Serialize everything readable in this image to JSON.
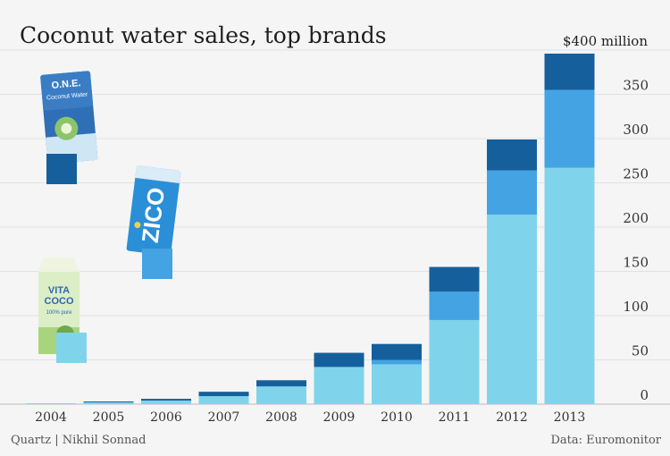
{
  "chart_data": {
    "type": "bar",
    "stacked": true,
    "title": "Coconut water sales, top brands",
    "unit_label": "$400 million",
    "categories": [
      "2004",
      "2005",
      "2006",
      "2007",
      "2008",
      "2009",
      "2010",
      "2011",
      "2012",
      "2013"
    ],
    "series": [
      {
        "brand_image": "Vita Coco",
        "color": "#7fd4ec",
        "values": [
          1,
          2,
          4,
          9,
          20,
          42,
          45,
          95,
          214,
          267
        ]
      },
      {
        "brand_image": "Zico",
        "color": "#44a3e2",
        "values": [
          0,
          0,
          0,
          0,
          0,
          0,
          5,
          32,
          50,
          88
        ]
      },
      {
        "brand_image": "O.N.E.",
        "color": "#15609c",
        "values": [
          0,
          1,
          2,
          5,
          7,
          16,
          18,
          28,
          35,
          41
        ]
      }
    ],
    "yticks": [
      0,
      50,
      100,
      150,
      200,
      250,
      300,
      350
    ],
    "ylim": [
      0,
      400
    ],
    "axis_position": "right",
    "grid": true,
    "legend": "brand product images at left with color swatches"
  },
  "brand_images": [
    {
      "name": "O.N.E.",
      "package_text": [
        "O.N.E.",
        "Coconut Water"
      ],
      "color": "#15609c"
    },
    {
      "name": "Zico",
      "package_text": [
        "ZICO"
      ],
      "color": "#44a3e2"
    },
    {
      "name": "Vita Coco",
      "package_text": [
        "VITA",
        "COCO",
        "100% pure"
      ],
      "color": "#7fd4ec"
    }
  ],
  "footer": {
    "credit": "Quartz | Nikhil Sonnad",
    "source": "Data: Euromonitor"
  }
}
